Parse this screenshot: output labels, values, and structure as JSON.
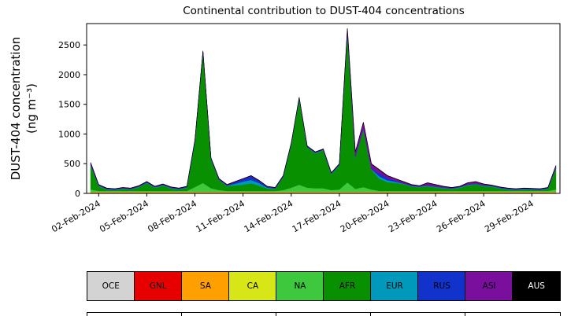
{
  "figure": {
    "title": "Continental contribution to DUST-404 concentrations",
    "ylabel_line1": "DUST-404 concentration",
    "ylabel_line2": "(ng m⁻³)"
  },
  "legend": {
    "items": [
      {
        "label": "OCE",
        "color": "#d3d3d3",
        "text_color": "#000000"
      },
      {
        "label": "GNL",
        "color": "#e60000",
        "text_color": "#000000"
      },
      {
        "label": "SA",
        "color": "#ff9f00",
        "text_color": "#000000"
      },
      {
        "label": "CA",
        "color": "#d7e617",
        "text_color": "#000000"
      },
      {
        "label": "NA",
        "color": "#3ec83e",
        "text_color": "#000000"
      },
      {
        "label": "AFR",
        "color": "#089000",
        "text_color": "#000000"
      },
      {
        "label": "EUR",
        "color": "#0099bb",
        "text_color": "#000000"
      },
      {
        "label": "RUS",
        "color": "#1133cc",
        "text_color": "#000000"
      },
      {
        "label": "ASI",
        "color": "#7a0f9e",
        "text_color": "#000000"
      },
      {
        "label": "AUS",
        "color": "#000000",
        "text_color": "#ffffff"
      }
    ]
  },
  "chart_data": {
    "type": "area",
    "stacked": true,
    "title": "Continental contribution to DUST-404 concentrations",
    "xlabel": "",
    "ylabel": "DUST-404 concentration (ng m⁻³)",
    "grid": false,
    "legend_position": "bottom",
    "x_unit": "days since 01-Feb-2024 00:00",
    "xlim": [
      0.25,
      29.75
    ],
    "ylim": [
      0,
      2860
    ],
    "x_ticks": {
      "values": [
        1,
        4,
        7,
        10,
        13,
        16,
        19,
        22,
        25,
        28
      ],
      "labels": [
        "02-Feb-2024",
        "05-Feb-2024",
        "08-Feb-2024",
        "11-Feb-2024",
        "14-Feb-2024",
        "17-Feb-2024",
        "20-Feb-2024",
        "23-Feb-2024",
        "26-Feb-2024",
        "29-Feb-2024"
      ]
    },
    "y_ticks": {
      "values": [
        0,
        500,
        1000,
        1500,
        2000,
        2500
      ],
      "labels": [
        "0",
        "500",
        "1000",
        "1500",
        "2000",
        "2500"
      ]
    },
    "x": [
      0.5,
      1,
      1.5,
      2,
      2.5,
      3,
      3.5,
      4,
      4.5,
      5,
      5.5,
      6,
      6.5,
      7,
      7.5,
      8,
      8.5,
      9,
      9.5,
      10,
      10.5,
      11,
      11.5,
      12,
      12.5,
      13,
      13.5,
      14,
      14.5,
      15,
      15.5,
      16,
      16.5,
      17,
      17.5,
      18,
      18.5,
      19,
      19.5,
      20,
      20.5,
      21,
      21.5,
      22,
      22.5,
      23,
      23.5,
      24,
      24.5,
      25,
      25.5,
      26,
      26.5,
      27,
      27.5,
      28,
      28.5,
      29,
      29.5
    ],
    "series": [
      {
        "name": "OCE",
        "color": "#d3d3d3",
        "values": [
          8,
          8,
          8,
          8,
          8,
          8,
          8,
          8,
          8,
          8,
          8,
          8,
          8,
          8,
          8,
          8,
          8,
          8,
          8,
          8,
          8,
          8,
          8,
          8,
          8,
          8,
          8,
          8,
          8,
          8,
          8,
          8,
          8,
          8,
          8,
          8,
          8,
          8,
          8,
          8,
          8,
          8,
          8,
          8,
          8,
          8,
          8,
          8,
          8,
          8,
          8,
          8,
          8,
          8,
          8,
          8,
          8,
          8,
          8
        ]
      },
      {
        "name": "GNL",
        "color": "#e60000",
        "values": [
          5,
          5,
          5,
          5,
          5,
          5,
          5,
          5,
          5,
          5,
          5,
          5,
          5,
          5,
          5,
          5,
          5,
          5,
          5,
          5,
          5,
          5,
          5,
          5,
          5,
          5,
          5,
          5,
          5,
          5,
          5,
          5,
          5,
          5,
          5,
          5,
          5,
          5,
          5,
          5,
          5,
          5,
          5,
          5,
          5,
          5,
          5,
          5,
          5,
          5,
          5,
          5,
          5,
          5,
          5,
          5,
          5,
          5,
          5
        ]
      },
      {
        "name": "SA",
        "color": "#ff9f00",
        "values": [
          8,
          8,
          8,
          8,
          8,
          8,
          8,
          8,
          8,
          8,
          8,
          8,
          8,
          8,
          8,
          8,
          8,
          8,
          8,
          8,
          8,
          8,
          8,
          8,
          8,
          8,
          8,
          8,
          8,
          8,
          8,
          8,
          8,
          8,
          8,
          8,
          8,
          8,
          8,
          8,
          8,
          8,
          8,
          8,
          8,
          8,
          8,
          8,
          8,
          8,
          8,
          8,
          8,
          8,
          8,
          8,
          8,
          8,
          8
        ]
      },
      {
        "name": "CA",
        "color": "#d7e617",
        "values": [
          6,
          6,
          6,
          6,
          6,
          6,
          6,
          6,
          6,
          6,
          6,
          6,
          6,
          6,
          6,
          6,
          6,
          6,
          6,
          6,
          6,
          6,
          6,
          6,
          6,
          6,
          6,
          6,
          6,
          6,
          6,
          6,
          6,
          6,
          6,
          6,
          6,
          6,
          6,
          6,
          6,
          6,
          6,
          6,
          6,
          6,
          6,
          6,
          6,
          6,
          6,
          6,
          6,
          6,
          6,
          6,
          6,
          6,
          6
        ]
      },
      {
        "name": "NA",
        "color": "#3ec83e",
        "values": [
          40,
          15,
          15,
          15,
          15,
          15,
          15,
          15,
          15,
          15,
          15,
          15,
          15,
          80,
          150,
          60,
          30,
          15,
          15,
          15,
          15,
          15,
          15,
          15,
          30,
          70,
          120,
          70,
          60,
          60,
          30,
          40,
          160,
          50,
          80,
          40,
          15,
          15,
          15,
          15,
          15,
          15,
          15,
          15,
          15,
          15,
          15,
          15,
          15,
          15,
          15,
          15,
          15,
          15,
          15,
          15,
          15,
          15,
          40
        ]
      },
      {
        "name": "AFR",
        "color": "#089000",
        "values": [
          405,
          82,
          22,
          12,
          32,
          22,
          62,
          132,
          52,
          92,
          42,
          22,
          52,
          767,
          2197,
          487,
          167,
          82,
          91,
          106,
          126,
          91,
          41,
          32,
          217,
          727,
          1447,
          677,
          587,
          637,
          267,
          407,
          2515,
          525,
          975,
          335,
          204,
          149,
          134,
          115,
          75,
          62,
          80,
          60,
          45,
          32,
          52,
          95,
          110,
          80,
          72,
          42,
          22,
          12,
          22,
          17,
          12,
          32,
          355
        ]
      },
      {
        "name": "EUR",
        "color": "#0099bb",
        "values": [
          8,
          8,
          8,
          8,
          8,
          8,
          8,
          8,
          8,
          8,
          8,
          8,
          8,
          8,
          8,
          8,
          8,
          8,
          30,
          50,
          60,
          40,
          15,
          8,
          8,
          8,
          8,
          8,
          8,
          8,
          8,
          8,
          8,
          8,
          8,
          8,
          40,
          30,
          20,
          8,
          8,
          8,
          8,
          8,
          8,
          8,
          8,
          8,
          8,
          8,
          8,
          8,
          8,
          8,
          8,
          8,
          8,
          8,
          8
        ]
      },
      {
        "name": "RUS",
        "color": "#1133cc",
        "values": [
          6,
          6,
          6,
          6,
          6,
          6,
          6,
          6,
          6,
          6,
          6,
          6,
          6,
          6,
          6,
          6,
          6,
          6,
          25,
          40,
          60,
          35,
          10,
          6,
          6,
          6,
          6,
          6,
          6,
          6,
          6,
          6,
          6,
          6,
          6,
          6,
          50,
          35,
          20,
          6,
          6,
          6,
          6,
          6,
          6,
          6,
          6,
          6,
          6,
          6,
          6,
          6,
          6,
          6,
          6,
          6,
          6,
          6,
          6
        ]
      },
      {
        "name": "ASI",
        "color": "#7a0f9e",
        "values": [
          30,
          8,
          8,
          8,
          8,
          8,
          8,
          8,
          8,
          8,
          8,
          8,
          8,
          8,
          8,
          8,
          8,
          8,
          8,
          8,
          8,
          8,
          8,
          8,
          8,
          8,
          8,
          8,
          8,
          8,
          8,
          8,
          60,
          80,
          100,
          80,
          60,
          40,
          30,
          25,
          15,
          8,
          40,
          30,
          15,
          8,
          8,
          25,
          30,
          20,
          8,
          8,
          8,
          8,
          8,
          8,
          8,
          8,
          30
        ]
      },
      {
        "name": "AUS",
        "color": "#000000",
        "values": [
          4,
          4,
          4,
          4,
          4,
          4,
          4,
          4,
          4,
          4,
          4,
          4,
          4,
          4,
          4,
          4,
          4,
          4,
          4,
          4,
          4,
          4,
          4,
          4,
          4,
          4,
          4,
          4,
          4,
          4,
          4,
          4,
          4,
          4,
          4,
          4,
          4,
          4,
          4,
          4,
          4,
          4,
          4,
          4,
          4,
          4,
          4,
          4,
          4,
          4,
          4,
          4,
          4,
          4,
          4,
          4,
          4,
          4,
          4
        ]
      }
    ]
  }
}
